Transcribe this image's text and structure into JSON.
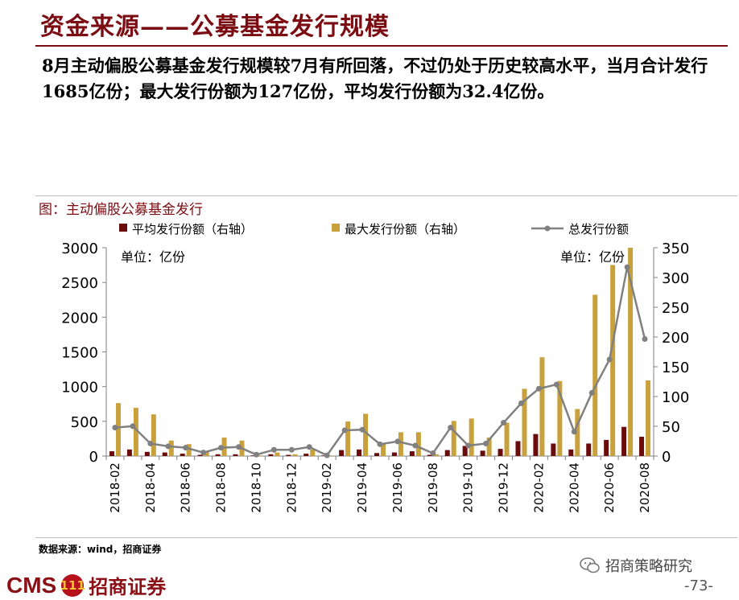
{
  "header": {
    "title": "资金来源——公募基金发行规模",
    "description": "8月主动偏股公募基金发行规模较7月有所回落，不过仍处于历史较高水平，当月合计发行1685亿份；最大发行份额为127亿份，平均发行份额为32.4亿份。"
  },
  "chart_data": {
    "type": "bar",
    "title": "图：主动偏股公募基金发行",
    "left_unit": "单位：亿份",
    "right_unit": "单位：亿份",
    "x": [
      "2018-02",
      "2018-03",
      "2018-04",
      "2018-05",
      "2018-06",
      "2018-07",
      "2018-08",
      "2018-09",
      "2018-10",
      "2018-11",
      "2018-12",
      "2019-01",
      "2019-02",
      "2019-03",
      "2019-04",
      "2019-05",
      "2019-06",
      "2019-07",
      "2019-08",
      "2019-09",
      "2019-10",
      "2019-11",
      "2019-12",
      "2020-01",
      "2020-02",
      "2020-03",
      "2020-04",
      "2020-05",
      "2020-06",
      "2020-07",
      "2020-08"
    ],
    "tick_labels": [
      "2018-02",
      "2018-04",
      "2018-06",
      "2018-08",
      "2018-10",
      "2018-12",
      "2019-02",
      "2019-04",
      "2019-06",
      "2019-08",
      "2019-10",
      "2019-12",
      "2020-02",
      "2020-04",
      "2020-06",
      "2020-08"
    ],
    "y_left": {
      "min": 0,
      "max": 3000,
      "ticks": [
        0,
        500,
        1000,
        1500,
        2000,
        2500,
        3000
      ]
    },
    "y_right": {
      "min": 0,
      "max": 350,
      "ticks": [
        0,
        50,
        100,
        150,
        200,
        250,
        300,
        350
      ]
    },
    "series": [
      {
        "name": "平均发行份额（右轴）",
        "kind": "bar",
        "axis": "right",
        "color": "#6b0b0b",
        "values": [
          8,
          11,
          7,
          6,
          4,
          2,
          3,
          3,
          1,
          3,
          2,
          4,
          1,
          10,
          11,
          5,
          6,
          8,
          2,
          10,
          17,
          9,
          12,
          25,
          37,
          21,
          11,
          21,
          27,
          49,
          32.4
        ]
      },
      {
        "name": "最大发行份额（右轴）",
        "kind": "bar",
        "axis": "right",
        "color": "#c9a13c",
        "values": [
          89,
          81,
          70,
          26,
          20,
          7,
          31,
          26,
          1,
          6,
          3,
          11,
          1,
          58,
          71,
          20,
          40,
          40,
          3,
          59,
          63,
          31,
          56,
          113,
          166,
          126,
          79,
          271,
          321,
          355,
          127
        ]
      },
      {
        "name": "总发行份额",
        "kind": "line",
        "axis": "left",
        "color": "#808080",
        "values": [
          410,
          430,
          180,
          140,
          120,
          50,
          120,
          130,
          20,
          90,
          90,
          130,
          10,
          370,
          380,
          170,
          210,
          150,
          40,
          410,
          150,
          180,
          480,
          760,
          970,
          1030,
          350,
          910,
          1390,
          2720,
          1685
        ]
      }
    ]
  },
  "source": "数据来源：wind，招商证券",
  "footer": {
    "brand": "CMS",
    "badge": "111",
    "company": "招商证券",
    "wechat": "招商策略研究",
    "page": "-73-"
  },
  "colors": {
    "brand": "#7a0c12"
  }
}
